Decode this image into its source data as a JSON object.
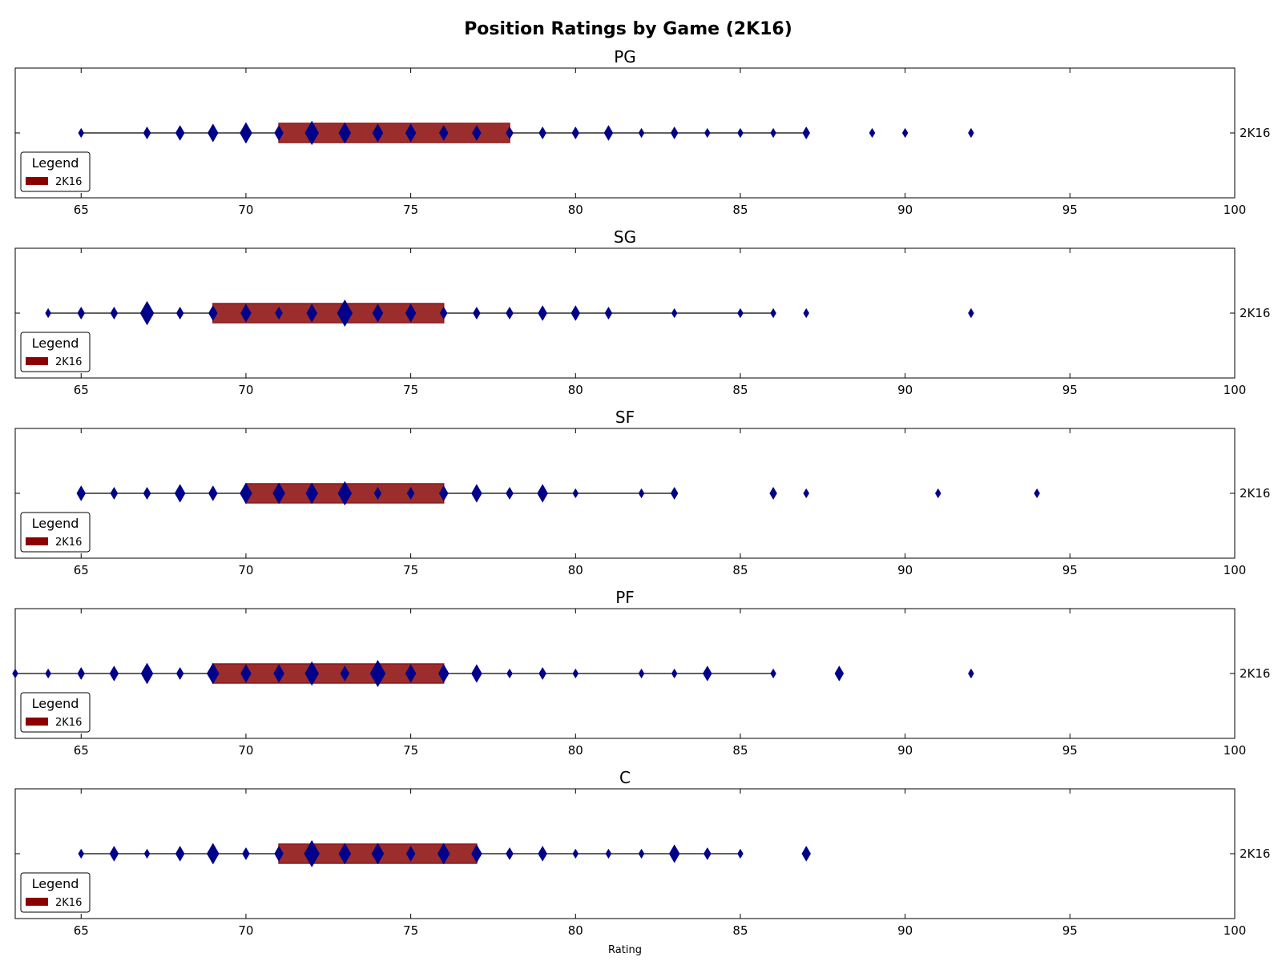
{
  "chart_data": {
    "type": "boxplot",
    "title": "Position Ratings by Game (2K16)",
    "xlabel": "Rating",
    "xlim": [
      63,
      100
    ],
    "xticks": [
      65,
      70,
      75,
      80,
      85,
      90,
      95,
      100
    ],
    "category_label": "2K16",
    "legend": {
      "title": "Legend",
      "entries": [
        "2K16"
      ],
      "placement": "lower-left"
    },
    "colors": {
      "box_fill": "#9b2d2d",
      "box_edge": "#8b1a1a",
      "marker": "#00008b",
      "legend_patch": "#8b0000"
    },
    "panels": [
      {
        "title": "PG",
        "box": [
          71,
          78
        ],
        "whiskers": [
          65,
          87
        ],
        "points": [
          {
            "x": 65,
            "s": 1
          },
          {
            "x": 67,
            "s": 2
          },
          {
            "x": 68,
            "s": 3
          },
          {
            "x": 69,
            "s": 4
          },
          {
            "x": 70,
            "s": 5
          },
          {
            "x": 71,
            "s": 3
          },
          {
            "x": 72,
            "s": 6
          },
          {
            "x": 73,
            "s": 5
          },
          {
            "x": 74,
            "s": 4
          },
          {
            "x": 75,
            "s": 4
          },
          {
            "x": 76,
            "s": 3
          },
          {
            "x": 77,
            "s": 3
          },
          {
            "x": 78,
            "s": 2
          },
          {
            "x": 79,
            "s": 2
          },
          {
            "x": 80,
            "s": 2
          },
          {
            "x": 81,
            "s": 3
          },
          {
            "x": 82,
            "s": 1
          },
          {
            "x": 83,
            "s": 2
          },
          {
            "x": 84,
            "s": 1
          },
          {
            "x": 85,
            "s": 1
          },
          {
            "x": 86,
            "s": 1
          },
          {
            "x": 87,
            "s": 2
          },
          {
            "x": 89,
            "s": 1
          },
          {
            "x": 90,
            "s": 1
          },
          {
            "x": 92,
            "s": 1
          }
        ]
      },
      {
        "title": "SG",
        "box": [
          69,
          76
        ],
        "whiskers": [
          64,
          86
        ],
        "points": [
          {
            "x": 64,
            "s": 1
          },
          {
            "x": 65,
            "s": 2
          },
          {
            "x": 66,
            "s": 2
          },
          {
            "x": 67,
            "s": 6
          },
          {
            "x": 68,
            "s": 2
          },
          {
            "x": 69,
            "s": 3
          },
          {
            "x": 70,
            "s": 4
          },
          {
            "x": 71,
            "s": 2
          },
          {
            "x": 72,
            "s": 4
          },
          {
            "x": 73,
            "s": 7
          },
          {
            "x": 74,
            "s": 4
          },
          {
            "x": 75,
            "s": 4
          },
          {
            "x": 76,
            "s": 2
          },
          {
            "x": 77,
            "s": 2
          },
          {
            "x": 78,
            "s": 2
          },
          {
            "x": 79,
            "s": 3
          },
          {
            "x": 80,
            "s": 3
          },
          {
            "x": 81,
            "s": 2
          },
          {
            "x": 83,
            "s": 1
          },
          {
            "x": 85,
            "s": 1
          },
          {
            "x": 86,
            "s": 1
          },
          {
            "x": 87,
            "s": 1
          },
          {
            "x": 92,
            "s": 1
          }
        ]
      },
      {
        "title": "SF",
        "box": [
          70,
          76
        ],
        "whiskers": [
          65,
          83
        ],
        "points": [
          {
            "x": 65,
            "s": 3
          },
          {
            "x": 66,
            "s": 2
          },
          {
            "x": 67,
            "s": 2
          },
          {
            "x": 68,
            "s": 4
          },
          {
            "x": 69,
            "s": 3
          },
          {
            "x": 70,
            "s": 5
          },
          {
            "x": 71,
            "s": 5
          },
          {
            "x": 72,
            "s": 5
          },
          {
            "x": 73,
            "s": 6
          },
          {
            "x": 74,
            "s": 2
          },
          {
            "x": 75,
            "s": 2
          },
          {
            "x": 76,
            "s": 3
          },
          {
            "x": 77,
            "s": 4
          },
          {
            "x": 78,
            "s": 2
          },
          {
            "x": 79,
            "s": 4
          },
          {
            "x": 80,
            "s": 1
          },
          {
            "x": 82,
            "s": 1
          },
          {
            "x": 83,
            "s": 2
          },
          {
            "x": 86,
            "s": 2
          },
          {
            "x": 87,
            "s": 1
          },
          {
            "x": 91,
            "s": 1
          },
          {
            "x": 94,
            "s": 1
          }
        ]
      },
      {
        "title": "PF",
        "box": [
          69,
          76
        ],
        "whiskers": [
          63,
          86
        ],
        "points": [
          {
            "x": 63,
            "s": 1
          },
          {
            "x": 64,
            "s": 1
          },
          {
            "x": 65,
            "s": 2
          },
          {
            "x": 66,
            "s": 3
          },
          {
            "x": 67,
            "s": 5
          },
          {
            "x": 68,
            "s": 2
          },
          {
            "x": 69,
            "s": 5
          },
          {
            "x": 70,
            "s": 4
          },
          {
            "x": 71,
            "s": 4
          },
          {
            "x": 72,
            "s": 6
          },
          {
            "x": 73,
            "s": 3
          },
          {
            "x": 74,
            "s": 7
          },
          {
            "x": 75,
            "s": 4
          },
          {
            "x": 76,
            "s": 4
          },
          {
            "x": 77,
            "s": 4
          },
          {
            "x": 78,
            "s": 1
          },
          {
            "x": 79,
            "s": 2
          },
          {
            "x": 80,
            "s": 1
          },
          {
            "x": 82,
            "s": 1
          },
          {
            "x": 83,
            "s": 1
          },
          {
            "x": 84,
            "s": 3
          },
          {
            "x": 86,
            "s": 1
          },
          {
            "x": 88,
            "s": 3
          },
          {
            "x": 92,
            "s": 1
          }
        ]
      },
      {
        "title": "C",
        "box": [
          71,
          77
        ],
        "whiskers": [
          65,
          85
        ],
        "points": [
          {
            "x": 65,
            "s": 1
          },
          {
            "x": 66,
            "s": 3
          },
          {
            "x": 67,
            "s": 1
          },
          {
            "x": 68,
            "s": 3
          },
          {
            "x": 69,
            "s": 5
          },
          {
            "x": 70,
            "s": 2
          },
          {
            "x": 71,
            "s": 3
          },
          {
            "x": 72,
            "s": 7
          },
          {
            "x": 73,
            "s": 5
          },
          {
            "x": 74,
            "s": 5
          },
          {
            "x": 75,
            "s": 3
          },
          {
            "x": 76,
            "s": 5
          },
          {
            "x": 77,
            "s": 4
          },
          {
            "x": 78,
            "s": 2
          },
          {
            "x": 79,
            "s": 3
          },
          {
            "x": 80,
            "s": 1
          },
          {
            "x": 81,
            "s": 1
          },
          {
            "x": 82,
            "s": 1
          },
          {
            "x": 83,
            "s": 4
          },
          {
            "x": 84,
            "s": 2
          },
          {
            "x": 85,
            "s": 1
          },
          {
            "x": 87,
            "s": 3
          }
        ]
      }
    ]
  }
}
